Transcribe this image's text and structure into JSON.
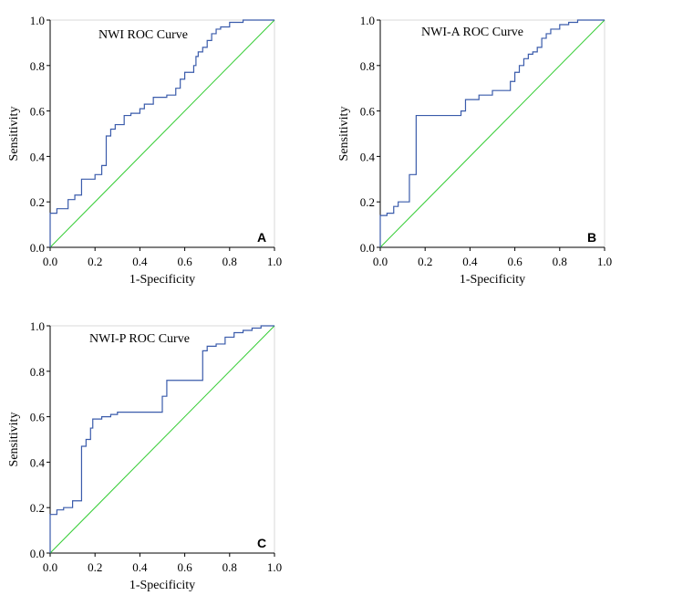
{
  "colors": {
    "roc": "#3a5bab",
    "diagonal": "#33cc33",
    "axis": "#000000"
  },
  "chart_data": [
    {
      "type": "line",
      "title": "NWI ROC Curve",
      "panel_label": "A",
      "xlabel": "1-Specificity",
      "ylabel": "Sensitivity",
      "xlim": [
        0,
        1
      ],
      "ylim": [
        0,
        1
      ],
      "x_ticks": [
        "0.0",
        "0.2",
        "0.4",
        "0.6",
        "0.8",
        "1.0"
      ],
      "y_ticks": [
        "0.0",
        "0.2",
        "0.4",
        "0.6",
        "0.8",
        "1.0"
      ],
      "series": [
        {
          "name": "",
          "x": [
            0,
            0,
            0.03,
            0.03,
            0.08,
            0.08,
            0.11,
            0.11,
            0.14,
            0.14,
            0.2,
            0.2,
            0.23,
            0.23,
            0.25,
            0.25,
            0.27,
            0.27,
            0.29,
            0.29,
            0.33,
            0.33,
            0.36,
            0.36,
            0.4,
            0.4,
            0.42,
            0.42,
            0.46,
            0.46,
            0.52,
            0.52,
            0.56,
            0.56,
            0.58,
            0.58,
            0.6,
            0.6,
            0.64,
            0.64,
            0.65,
            0.65,
            0.66,
            0.66,
            0.68,
            0.68,
            0.7,
            0.7,
            0.72,
            0.72,
            0.74,
            0.74,
            0.76,
            0.76,
            0.8,
            0.8,
            0.86,
            0.86,
            1.0
          ],
          "y": [
            0,
            0.15,
            0.15,
            0.17,
            0.17,
            0.21,
            0.21,
            0.23,
            0.23,
            0.3,
            0.3,
            0.32,
            0.32,
            0.36,
            0.36,
            0.49,
            0.49,
            0.52,
            0.52,
            0.54,
            0.54,
            0.58,
            0.58,
            0.59,
            0.59,
            0.61,
            0.61,
            0.63,
            0.63,
            0.66,
            0.66,
            0.67,
            0.67,
            0.7,
            0.7,
            0.74,
            0.74,
            0.77,
            0.77,
            0.8,
            0.8,
            0.84,
            0.84,
            0.86,
            0.86,
            0.88,
            0.88,
            0.91,
            0.91,
            0.94,
            0.94,
            0.96,
            0.96,
            0.97,
            0.97,
            0.99,
            0.99,
            1.0,
            1.0
          ]
        },
        {
          "name": "",
          "x": [
            0,
            1
          ],
          "y": [
            0,
            1
          ]
        }
      ]
    },
    {
      "type": "line",
      "title": "NWI-A ROC Curve",
      "panel_label": "B",
      "xlabel": "1-Specificity",
      "ylabel": "Sensitivity",
      "xlim": [
        0,
        1
      ],
      "ylim": [
        0,
        1
      ],
      "x_ticks": [
        "0.0",
        "0.2",
        "0.4",
        "0.6",
        "0.8",
        "1.0"
      ],
      "y_ticks": [
        "0.0",
        "0.2",
        "0.4",
        "0.6",
        "0.8",
        "1.0"
      ],
      "series": [
        {
          "name": "",
          "x": [
            0,
            0,
            0.03,
            0.03,
            0.06,
            0.06,
            0.08,
            0.08,
            0.13,
            0.13,
            0.16,
            0.16,
            0.36,
            0.36,
            0.38,
            0.38,
            0.44,
            0.44,
            0.5,
            0.5,
            0.58,
            0.58,
            0.6,
            0.6,
            0.62,
            0.62,
            0.64,
            0.64,
            0.66,
            0.66,
            0.68,
            0.68,
            0.7,
            0.7,
            0.72,
            0.72,
            0.74,
            0.74,
            0.76,
            0.76,
            0.8,
            0.8,
            0.84,
            0.84,
            0.88,
            0.88,
            0.92,
            0.92,
            1.0
          ],
          "y": [
            0,
            0.14,
            0.14,
            0.15,
            0.15,
            0.18,
            0.18,
            0.2,
            0.2,
            0.32,
            0.32,
            0.58,
            0.58,
            0.6,
            0.6,
            0.65,
            0.65,
            0.67,
            0.67,
            0.69,
            0.69,
            0.73,
            0.73,
            0.77,
            0.77,
            0.8,
            0.8,
            0.83,
            0.83,
            0.85,
            0.85,
            0.86,
            0.86,
            0.88,
            0.88,
            0.92,
            0.92,
            0.94,
            0.94,
            0.96,
            0.96,
            0.98,
            0.98,
            0.99,
            0.99,
            1.0,
            1.0,
            1.0,
            1.0
          ]
        },
        {
          "name": "",
          "x": [
            0,
            1
          ],
          "y": [
            0,
            1
          ]
        }
      ]
    },
    {
      "type": "line",
      "title": "NWI-P ROC Curve",
      "panel_label": "C",
      "xlabel": "1-Specificity",
      "ylabel": "Sensitivity",
      "xlim": [
        0,
        1
      ],
      "ylim": [
        0,
        1
      ],
      "x_ticks": [
        "0.0",
        "0.2",
        "0.4",
        "0.6",
        "0.8",
        "1.0"
      ],
      "y_ticks": [
        "0.0",
        "0.2",
        "0.4",
        "0.6",
        "0.8",
        "1.0"
      ],
      "series": [
        {
          "name": "",
          "x": [
            0,
            0,
            0.03,
            0.03,
            0.06,
            0.06,
            0.1,
            0.1,
            0.14,
            0.14,
            0.16,
            0.16,
            0.18,
            0.18,
            0.19,
            0.19,
            0.23,
            0.23,
            0.27,
            0.27,
            0.3,
            0.3,
            0.5,
            0.5,
            0.52,
            0.52,
            0.68,
            0.68,
            0.7,
            0.7,
            0.74,
            0.74,
            0.78,
            0.78,
            0.82,
            0.82,
            0.86,
            0.86,
            0.9,
            0.9,
            0.94,
            0.94,
            1.0
          ],
          "y": [
            0,
            0.17,
            0.17,
            0.19,
            0.19,
            0.2,
            0.2,
            0.23,
            0.23,
            0.47,
            0.47,
            0.5,
            0.5,
            0.55,
            0.55,
            0.59,
            0.59,
            0.6,
            0.6,
            0.61,
            0.61,
            0.62,
            0.62,
            0.69,
            0.69,
            0.76,
            0.76,
            0.89,
            0.89,
            0.91,
            0.91,
            0.92,
            0.92,
            0.95,
            0.95,
            0.97,
            0.97,
            0.98,
            0.98,
            0.99,
            0.99,
            1.0,
            1.0
          ]
        },
        {
          "name": "",
          "x": [
            0,
            1
          ],
          "y": [
            0,
            1
          ]
        }
      ]
    }
  ]
}
